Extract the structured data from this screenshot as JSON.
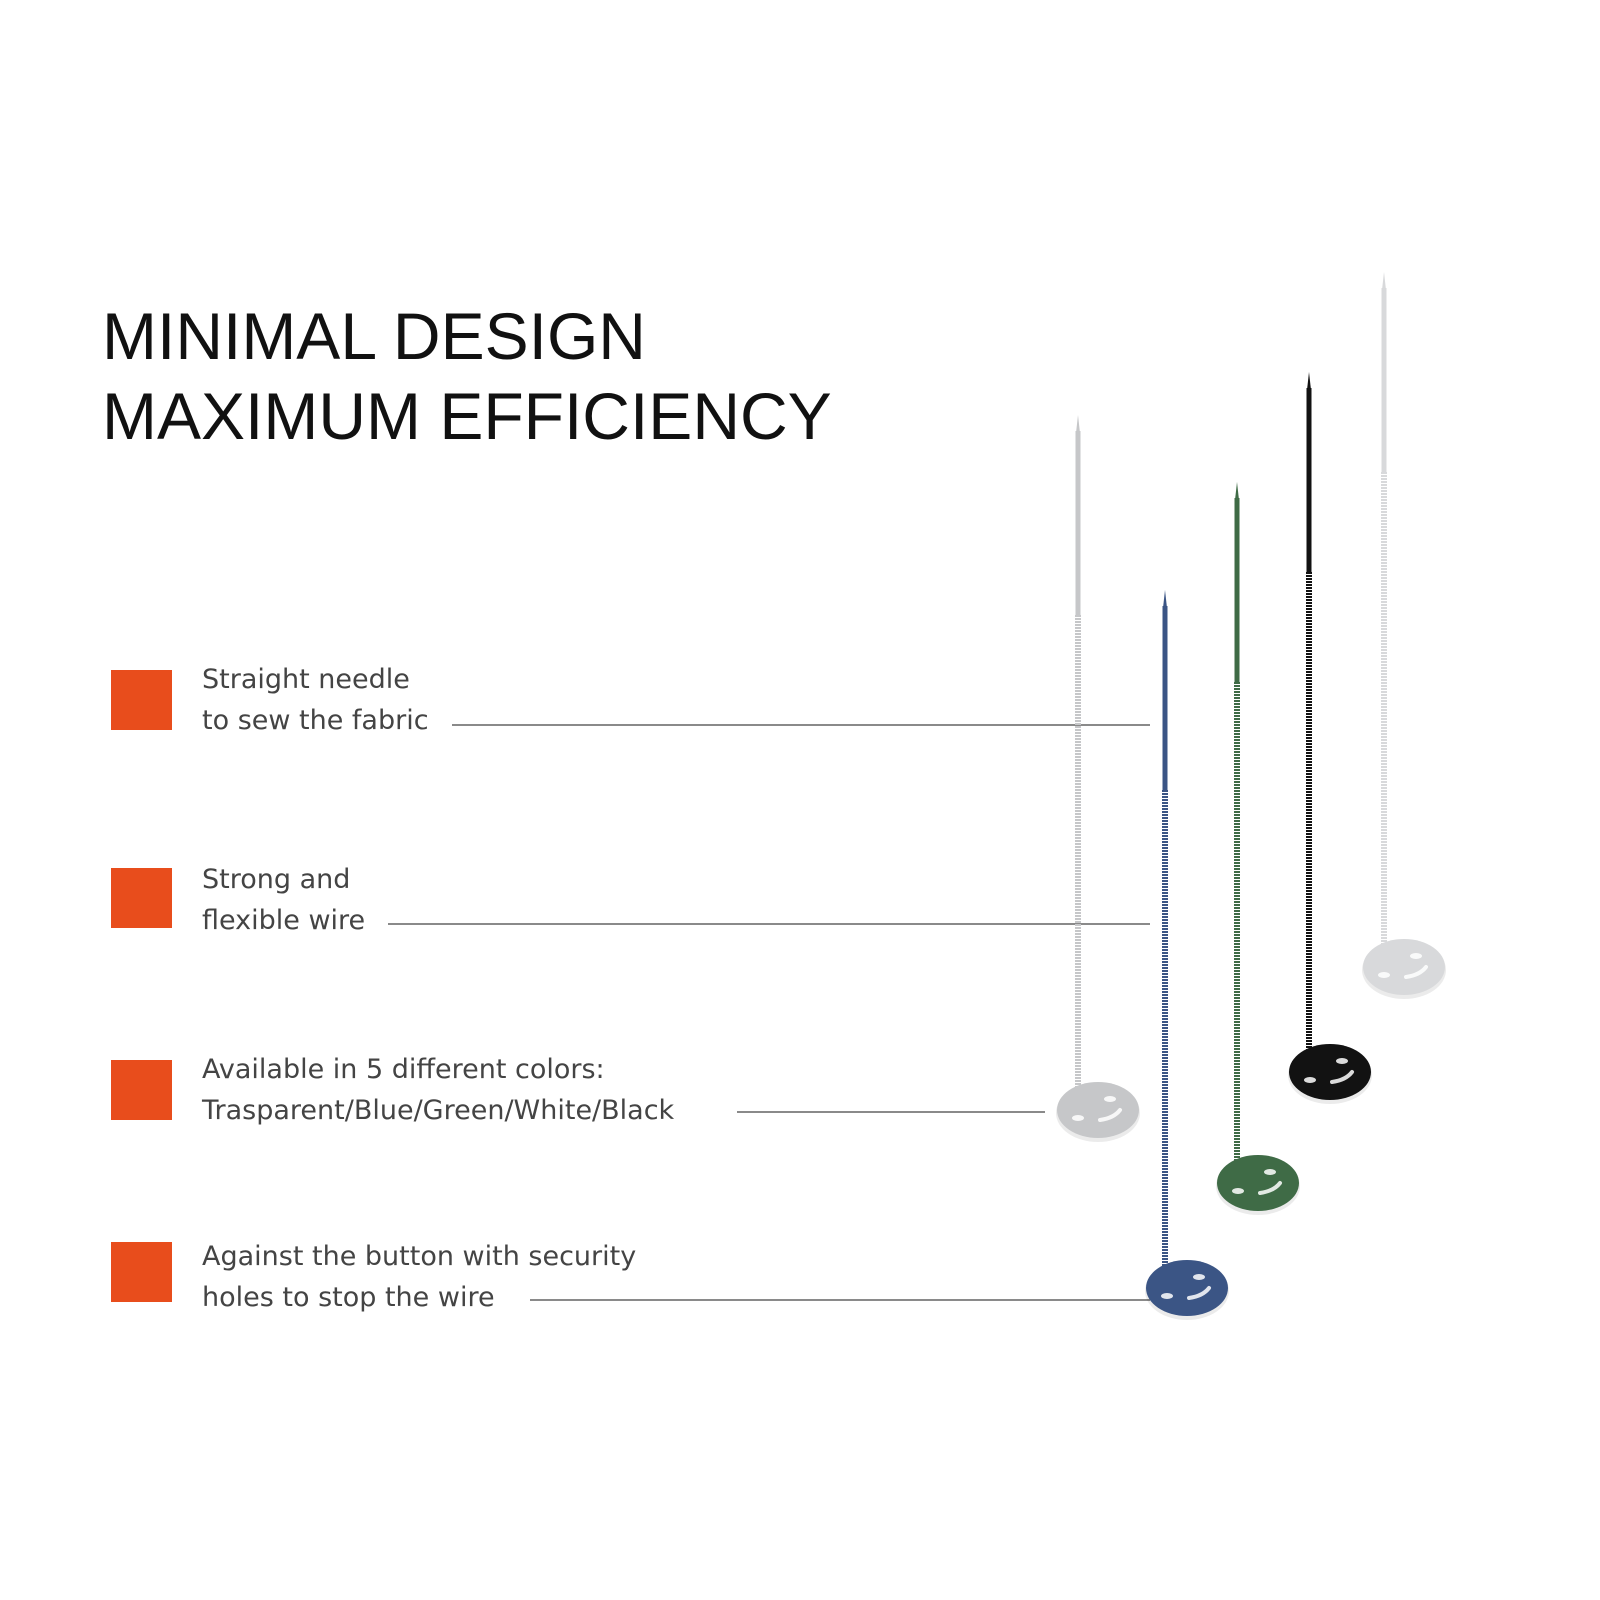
{
  "title": {
    "line1": "MINIMAL DESIGN",
    "line2": "MAXIMUM EFFICIENCY"
  },
  "accent_color": "#e84d1c",
  "features": [
    {
      "line1": "Straight needle",
      "line2": "to sew the fabric"
    },
    {
      "line1": "Strong and",
      "line2": "flexible wire"
    },
    {
      "line1": "Available in 5 different colors:",
      "line2": "Trasparent/Blue/Green/White/Black"
    },
    {
      "line1": "Against the button with security",
      "line2": "holes to stop the wire"
    }
  ],
  "pins": [
    {
      "name": "transparent",
      "color": "#c6c7c9"
    },
    {
      "name": "blue",
      "color": "#3b5585"
    },
    {
      "name": "green",
      "color": "#3f6b46"
    },
    {
      "name": "black",
      "color": "#121212"
    },
    {
      "name": "white",
      "color": "#d8d9db"
    }
  ]
}
